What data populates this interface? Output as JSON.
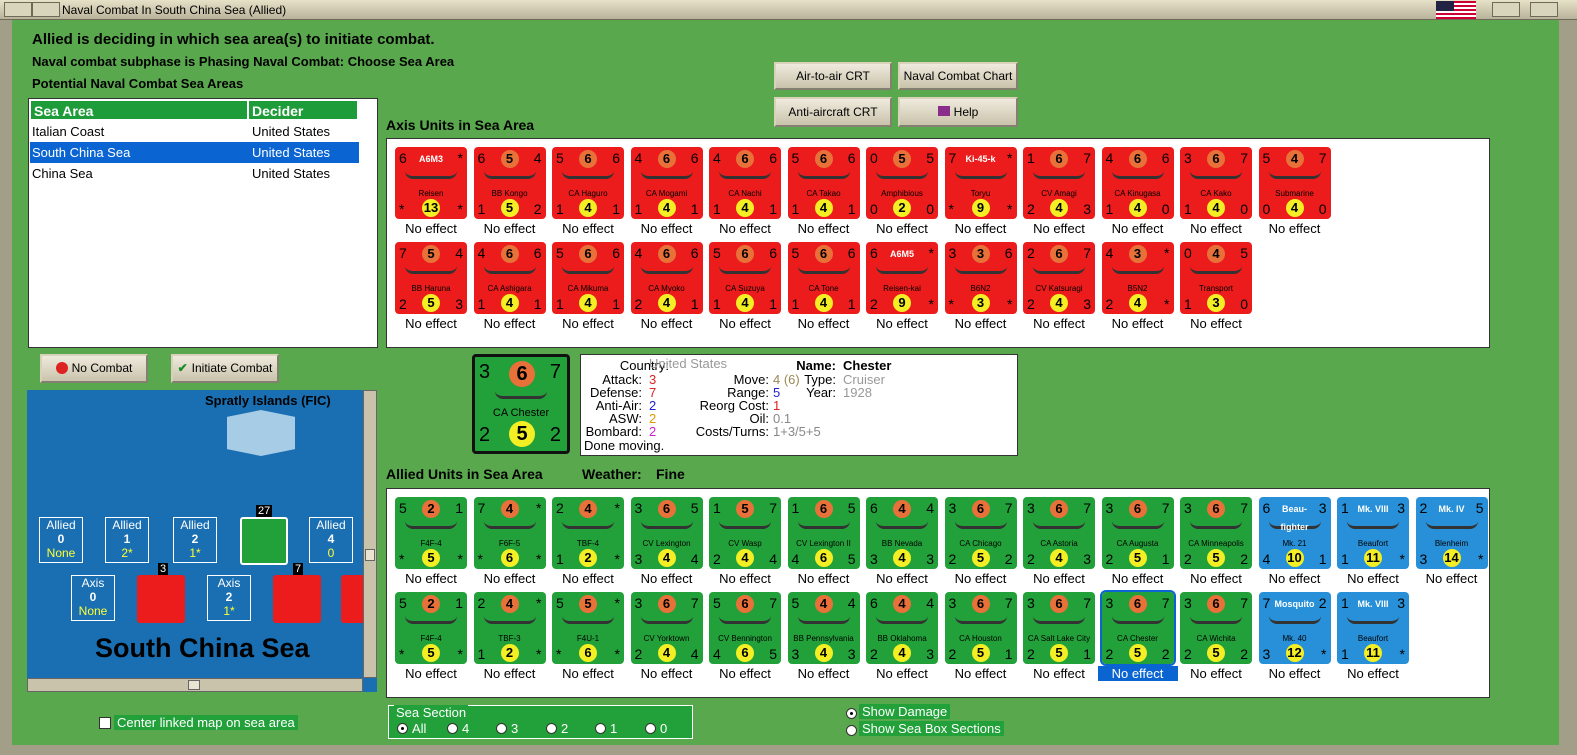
{
  "window": {
    "title": "Naval Combat In South China Sea (Allied)"
  },
  "status": {
    "line1": "Allied is deciding in which sea area(s) to initiate combat.",
    "line2": "Naval combat subphase is Phasing Naval Combat: Choose Sea Area",
    "line3": "Potential Naval Combat Sea Areas"
  },
  "buttons": {
    "air_crt": "Air-to-air CRT",
    "naval_chart": "Naval Combat Chart",
    "aa_crt": "Anti-aircraft CRT",
    "help": "Help",
    "no_combat": "No Combat",
    "initiate": "Initiate Combat"
  },
  "table": {
    "col1": "Sea Area",
    "col2": "Decider",
    "rows": [
      {
        "area": "Italian Coast",
        "decider": "United States"
      },
      {
        "area": "South China Sea",
        "decider": "United States"
      },
      {
        "area": "China Sea",
        "decider": "United States"
      }
    ]
  },
  "axis_label": "Axis Units in Sea Area",
  "allied_label": "Allied Units in Sea Area",
  "weather_label": "Weather:",
  "weather_value": "Fine",
  "effect": "No effect",
  "axis_units": [
    {
      "l": "6",
      "m": "A6M3",
      "r": "*",
      "name": "Reisen",
      "b": "*",
      "c": "13",
      "br": "*"
    },
    {
      "l": "6",
      "m": "5",
      "r": "4",
      "name": "BB Kongo",
      "b": "1",
      "c": "5",
      "br": "2"
    },
    {
      "l": "5",
      "m": "6",
      "r": "6",
      "name": "CA Haguro",
      "b": "1",
      "c": "4",
      "br": "1"
    },
    {
      "l": "4",
      "m": "6",
      "r": "6",
      "name": "CA Mogami",
      "b": "1",
      "c": "4",
      "br": "1"
    },
    {
      "l": "4",
      "m": "6",
      "r": "6",
      "name": "CA Nachi",
      "b": "1",
      "c": "4",
      "br": "1"
    },
    {
      "l": "5",
      "m": "6",
      "r": "6",
      "name": "CA Takao",
      "b": "1",
      "c": "4",
      "br": "1"
    },
    {
      "l": "0",
      "m": "5",
      "r": "5",
      "name": "Amphibious",
      "b": "0",
      "c": "2",
      "br": "0"
    },
    {
      "l": "7",
      "m": "Ki-45-k",
      "r": "*",
      "name": "Toryu",
      "b": "*",
      "c": "9",
      "br": "*"
    },
    {
      "l": "1",
      "m": "6",
      "r": "7",
      "name": "CV Amagi",
      "b": "2",
      "c": "4",
      "br": "3"
    },
    {
      "l": "4",
      "m": "6",
      "r": "6",
      "name": "CA Kinugasa",
      "b": "1",
      "c": "4",
      "br": "0"
    },
    {
      "l": "3",
      "m": "6",
      "r": "7",
      "name": "CA Kako",
      "b": "1",
      "c": "4",
      "br": "0"
    },
    {
      "l": "5",
      "m": "4",
      "r": "7",
      "name": "Submarine",
      "b": "0",
      "c": "4",
      "br": "0"
    },
    {
      "l": "7",
      "m": "5",
      "r": "4",
      "name": "BB Haruna",
      "b": "2",
      "c": "5",
      "br": "3"
    },
    {
      "l": "4",
      "m": "6",
      "r": "6",
      "name": "CA Ashigara",
      "b": "1",
      "c": "4",
      "br": "1"
    },
    {
      "l": "5",
      "m": "6",
      "r": "6",
      "name": "CA Mikuma",
      "b": "1",
      "c": "4",
      "br": "1"
    },
    {
      "l": "4",
      "m": "6",
      "r": "6",
      "name": "CA Myoko",
      "b": "2",
      "c": "4",
      "br": "1"
    },
    {
      "l": "5",
      "m": "6",
      "r": "6",
      "name": "CA Suzuya",
      "b": "1",
      "c": "4",
      "br": "1"
    },
    {
      "l": "5",
      "m": "6",
      "r": "6",
      "name": "CA Tone",
      "b": "1",
      "c": "4",
      "br": "1"
    },
    {
      "l": "6",
      "m": "A6M5",
      "r": "*",
      "name": "Reisen-kai",
      "b": "2",
      "c": "9",
      "br": "*"
    },
    {
      "l": "3",
      "m": "3",
      "r": "6",
      "name": "B6N2",
      "b": "*",
      "c": "3",
      "br": "*"
    },
    {
      "l": "2",
      "m": "6",
      "r": "7",
      "name": "CV Katsuragi",
      "b": "2",
      "c": "4",
      "br": "3"
    },
    {
      "l": "4",
      "m": "3",
      "r": "*",
      "name": "B5N2",
      "b": "2",
      "c": "4",
      "br": "*"
    },
    {
      "l": "0",
      "m": "4",
      "r": "5",
      "name": "Transport",
      "b": "1",
      "c": "3",
      "br": "0"
    }
  ],
  "allied_units": [
    {
      "l": "5",
      "m": "2",
      "r": "1",
      "name": "F4F-4",
      "b": "*",
      "c": "5",
      "br": "*",
      "t": "green"
    },
    {
      "l": "7",
      "m": "4",
      "r": "*",
      "name": "F6F-5",
      "b": "*",
      "c": "6",
      "br": "*",
      "t": "green"
    },
    {
      "l": "2",
      "m": "4",
      "r": "*",
      "name": "TBF-4",
      "b": "1",
      "c": "2",
      "br": "*",
      "t": "green"
    },
    {
      "l": "3",
      "m": "6",
      "r": "5",
      "name": "CV Lexington",
      "b": "3",
      "c": "4",
      "br": "4",
      "t": "green"
    },
    {
      "l": "1",
      "m": "5",
      "r": "7",
      "name": "CV Wasp",
      "b": "2",
      "c": "4",
      "br": "4",
      "t": "green"
    },
    {
      "l": "1",
      "m": "6",
      "r": "5",
      "name": "CV Lexington II",
      "b": "4",
      "c": "6",
      "br": "5",
      "t": "green"
    },
    {
      "l": "6",
      "m": "4",
      "r": "4",
      "name": "BB Nevada",
      "b": "3",
      "c": "4",
      "br": "3",
      "t": "green"
    },
    {
      "l": "3",
      "m": "6",
      "r": "7",
      "name": "CA Chicago",
      "b": "2",
      "c": "5",
      "br": "2",
      "t": "green"
    },
    {
      "l": "3",
      "m": "6",
      "r": "7",
      "name": "CA Astoria",
      "b": "2",
      "c": "4",
      "br": "3",
      "t": "green"
    },
    {
      "l": "3",
      "m": "6",
      "r": "7",
      "name": "CA Augusta",
      "b": "2",
      "c": "5",
      "br": "1",
      "t": "green"
    },
    {
      "l": "3",
      "m": "6",
      "r": "7",
      "name": "CA Minneapolis",
      "b": "2",
      "c": "5",
      "br": "2",
      "t": "green"
    },
    {
      "l": "6",
      "m": "Beau-fighter",
      "r": "3",
      "name": "Mk. 21",
      "b": "4",
      "c": "10",
      "br": "1",
      "t": "blue"
    },
    {
      "l": "1",
      "m": "Mk. VIII",
      "r": "3",
      "name": "Beaufort",
      "b": "1",
      "c": "11",
      "br": "*",
      "t": "blue"
    },
    {
      "l": "2",
      "m": "Mk. IV",
      "r": "5",
      "name": "Blenheim",
      "b": "3",
      "c": "14",
      "br": "*",
      "t": "blue"
    },
    {
      "l": "5",
      "m": "2",
      "r": "1",
      "name": "F4F-4",
      "b": "*",
      "c": "5",
      "br": "*",
      "t": "green"
    },
    {
      "l": "2",
      "m": "4",
      "r": "*",
      "name": "TBF-3",
      "b": "1",
      "c": "2",
      "br": "*",
      "t": "green"
    },
    {
      "l": "5",
      "m": "5",
      "r": "*",
      "name": "F4U-1",
      "b": "*",
      "c": "6",
      "br": "*",
      "t": "green"
    },
    {
      "l": "3",
      "m": "6",
      "r": "7",
      "name": "CV Yorktown",
      "b": "2",
      "c": "4",
      "br": "4",
      "t": "green"
    },
    {
      "l": "5",
      "m": "6",
      "r": "7",
      "name": "CV Bennington",
      "b": "4",
      "c": "6",
      "br": "5",
      "t": "green"
    },
    {
      "l": "5",
      "m": "4",
      "r": "4",
      "name": "BB Pennsylvania",
      "b": "3",
      "c": "4",
      "br": "3",
      "t": "green"
    },
    {
      "l": "6",
      "m": "4",
      "r": "4",
      "name": "BB Oklahoma",
      "b": "2",
      "c": "4",
      "br": "3",
      "t": "green"
    },
    {
      "l": "3",
      "m": "6",
      "r": "7",
      "name": "CA Houston",
      "b": "2",
      "c": "5",
      "br": "1",
      "t": "green"
    },
    {
      "l": "3",
      "m": "6",
      "r": "7",
      "name": "CA Salt Lake City",
      "b": "2",
      "c": "5",
      "br": "1",
      "t": "green"
    },
    {
      "l": "3",
      "m": "6",
      "r": "7",
      "name": "CA Chester",
      "b": "2",
      "c": "5",
      "br": "2",
      "t": "green"
    },
    {
      "l": "3",
      "m": "6",
      "r": "7",
      "name": "CA Wichita",
      "b": "2",
      "c": "5",
      "br": "2",
      "t": "green"
    },
    {
      "l": "7",
      "m": "Mosquito",
      "r": "2",
      "name": "Mk. 40",
      "b": "3",
      "c": "12",
      "br": "*",
      "t": "blue"
    },
    {
      "l": "1",
      "m": "Mk. VIII",
      "r": "3",
      "name": "Beaufort",
      "b": "1",
      "c": "11",
      "br": "*",
      "t": "blue"
    }
  ],
  "selected_unit": {
    "l": "3",
    "m": "6",
    "r": "7",
    "name": "CA Chester",
    "b": "2",
    "c": "5",
    "br": "2"
  },
  "details": {
    "country_k": "Country:",
    "country": "United States",
    "attack_k": "Attack:",
    "attack": "3",
    "defense_k": "Defense:",
    "defense": "7",
    "aa_k": "Anti-Air:",
    "aa": "2",
    "asw_k": "ASW:",
    "asw": "2",
    "bombard_k": "Bombard:",
    "bombard": "2",
    "done": "Done moving.",
    "name_k": "Name:",
    "name": "Chester",
    "move_k": "Move:",
    "move": "4 (6)",
    "type_k": "Type:",
    "type": "Cruiser",
    "range_k": "Range:",
    "range": "5",
    "year_k": "Year:",
    "year": "1928",
    "reorg_k": "Reorg Cost:",
    "reorg": "1",
    "oil_k": "Oil:",
    "oil": "0.1",
    "costs_k": "Costs/Turns:",
    "costs": "1+3/5+5"
  },
  "map": {
    "island": "Spratly Islands (FIC)",
    "sea": "South China Sea",
    "allied_boxes": [
      {
        "label": "Allied",
        "num": "0",
        "sub": "None"
      },
      {
        "label": "Allied",
        "num": "1",
        "sub": "2*"
      },
      {
        "label": "Allied",
        "num": "2",
        "sub": "1*"
      },
      {
        "label": "Allied",
        "num": "4",
        "sub": "0"
      }
    ],
    "axis_boxes": [
      {
        "label": "Axis",
        "num": "0",
        "sub": "None"
      },
      {
        "label": "Axis",
        "num": "2",
        "sub": "1*"
      }
    ],
    "stack_counts": [
      "27",
      "3",
      "7"
    ]
  },
  "center_map": "Center linked map on sea area",
  "sea_section": {
    "label": "Sea Section",
    "options": [
      "All",
      "4",
      "3",
      "2",
      "1",
      "0"
    ]
  },
  "show_damage": "Show Damage",
  "show_sections": "Show Sea Box Sections"
}
